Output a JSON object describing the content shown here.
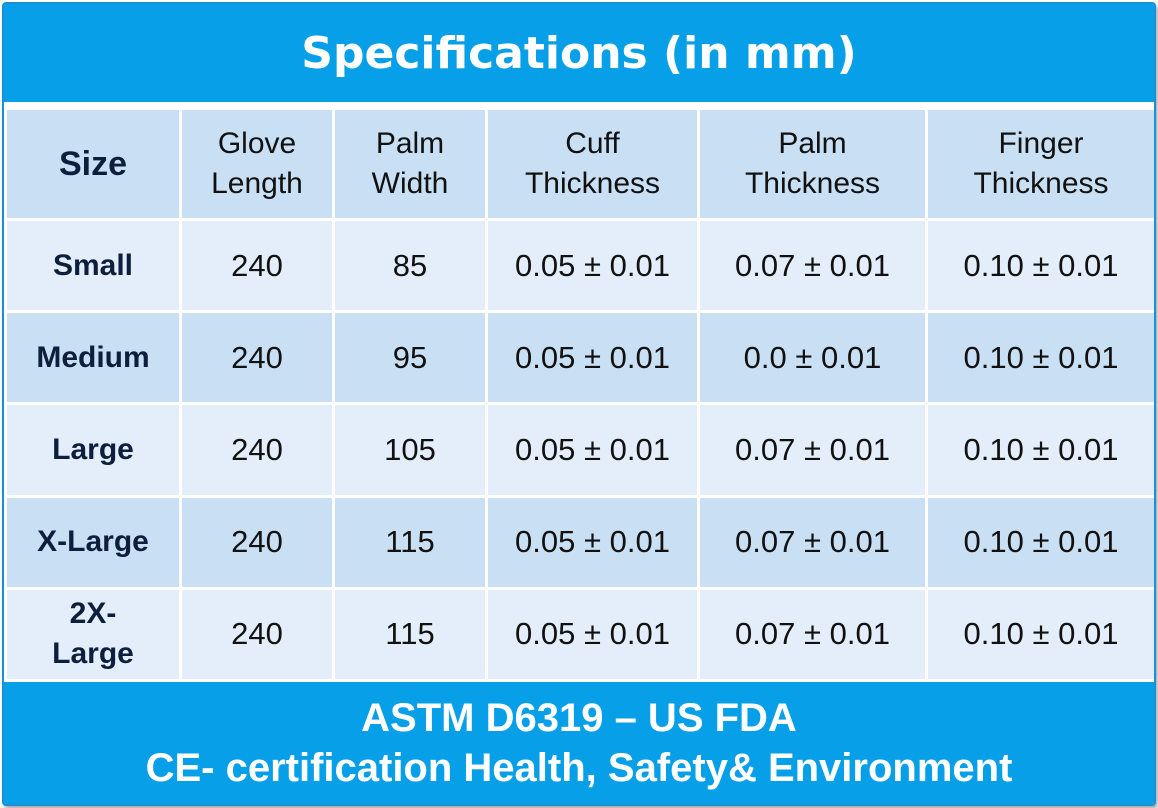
{
  "title": "Specifications (in mm)",
  "table": {
    "headers": [
      [
        "Size"
      ],
      [
        "Glove",
        "Length"
      ],
      [
        "Palm",
        "Width"
      ],
      [
        "Cuff",
        "Thickness"
      ],
      [
        "Palm",
        "Thickness"
      ],
      [
        "Finger",
        "Thickness"
      ]
    ],
    "rows": [
      {
        "size": [
          "Small"
        ],
        "cells": [
          "240",
          "85",
          "0.05 ± 0.01",
          "0.07 ± 0.01",
          "0.10 ± 0.01"
        ]
      },
      {
        "size": [
          "Medium"
        ],
        "cells": [
          "240",
          "95",
          "0.05 ± 0.01",
          "0.0 ± 0.01",
          "0.10 ± 0.01"
        ]
      },
      {
        "size": [
          "Large"
        ],
        "cells": [
          "240",
          "105",
          "0.05 ± 0.01",
          "0.07 ± 0.01",
          "0.10 ± 0.01"
        ]
      },
      {
        "size": [
          "X-Large"
        ],
        "cells": [
          "240",
          "115",
          "0.05 ± 0.01",
          "0.07 ± 0.01",
          "0.10 ± 0.01"
        ]
      },
      {
        "size": [
          "2X-",
          "Large"
        ],
        "cells": [
          "240",
          "115",
          "0.05 ± 0.01",
          "0.07 ± 0.01",
          "0.10 ± 0.01"
        ]
      }
    ]
  },
  "footer": {
    "line1": "ASTM D6319 – US FDA",
    "line2": "CE- certification Health, Safety& Environment"
  },
  "colors": {
    "accent_blue": "#07a0e8",
    "header_cell": "#c9dff4",
    "row_light": "#e3eefa",
    "row_dark": "#c9dff4",
    "size_text": "#0d1f3c"
  }
}
